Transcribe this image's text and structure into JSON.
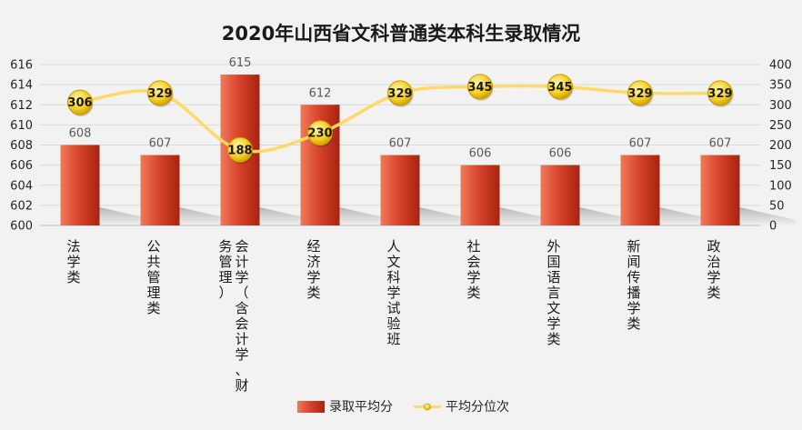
{
  "chart_data": {
    "type": "bar",
    "title": "2020年山西省文科普通类本科生录取情况",
    "categories": [
      [
        "法学类"
      ],
      [
        "公共管理类"
      ],
      [
        "会计学（含会计学、财",
        "务管理）"
      ],
      [
        "经济学类"
      ],
      [
        "人文科学试验班"
      ],
      [
        "社会学类"
      ],
      [
        "外国语言文学类"
      ],
      [
        "新闻传播学类"
      ],
      [
        "政治学类"
      ]
    ],
    "series": [
      {
        "name": "录取平均分",
        "type": "bar",
        "axis": "left",
        "values": [
          608,
          607,
          615,
          612,
          607,
          606,
          606,
          607,
          607
        ]
      },
      {
        "name": "平均分位次",
        "type": "line",
        "axis": "right",
        "values": [
          306,
          329,
          188,
          230,
          329,
          345,
          345,
          329,
          329
        ]
      }
    ],
    "y_left": {
      "min": 600,
      "max": 616,
      "step": 2
    },
    "y_right": {
      "min": 0,
      "max": 400,
      "step": 50
    },
    "grid": true,
    "legend_position": "bottom",
    "colors": {
      "bar": "#c0311f",
      "bar_light": "#f07a5a",
      "line": "#ffd966",
      "marker": "#f5c400",
      "background": "#f2f2f2"
    }
  }
}
